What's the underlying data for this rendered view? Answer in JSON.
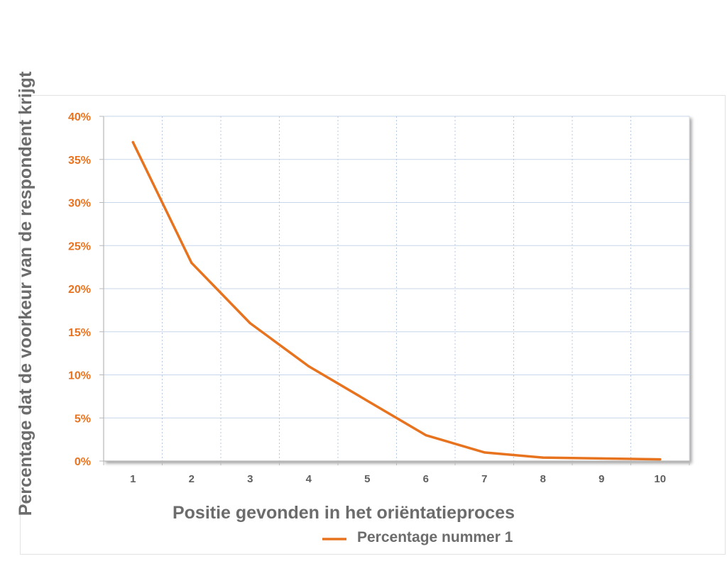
{
  "chart_data": {
    "type": "line",
    "xlabel": "Positie gevonden in het oriëntatieproces",
    "ylabel": "Percentage dat de voorkeur van de respondent krijgt",
    "categories": [
      "1",
      "2",
      "3",
      "4",
      "5",
      "6",
      "7",
      "8",
      "9",
      "10"
    ],
    "yticks": [
      "0%",
      "5%",
      "10%",
      "15%",
      "20%",
      "25%",
      "30%",
      "35%",
      "40%"
    ],
    "ylim": [
      0,
      40
    ],
    "grid": true,
    "legend_position": "bottom",
    "series": [
      {
        "name": "Percentage nummer 1",
        "color": "#e8731f",
        "values": [
          37,
          23,
          16,
          11,
          7,
          3,
          1,
          0.4,
          0.3,
          0.2
        ]
      }
    ]
  }
}
